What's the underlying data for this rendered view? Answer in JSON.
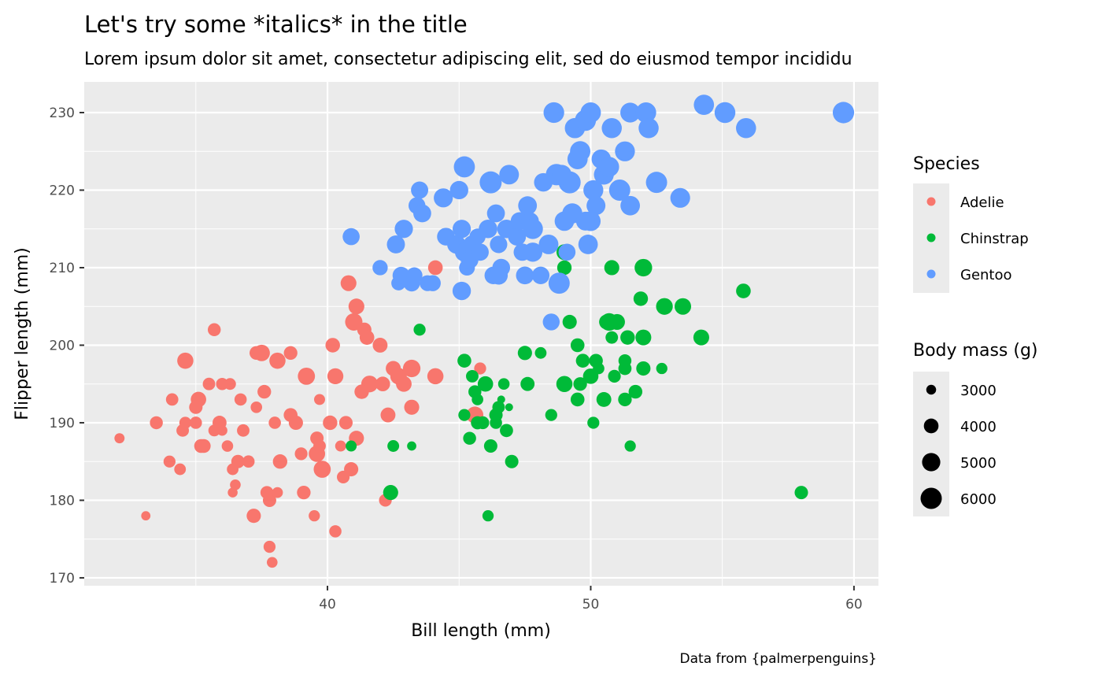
{
  "chart_data": {
    "type": "scatter",
    "title": "Let's try some *italics* in the title",
    "subtitle": "Lorem ipsum dolor sit amet, consectetur adipiscing elit, sed do eiusmod tempor incididu",
    "caption": "Data from {palmerpenguins}",
    "xlabel": "Bill length (mm)",
    "ylabel": "Flipper length (mm)",
    "xlim": [
      30.76,
      60.93
    ],
    "ylim": [
      168.98,
      233.96
    ],
    "xticks": [
      "40",
      "50",
      "60"
    ],
    "yticks": [
      "170",
      "180",
      "190",
      "200",
      "210",
      "220",
      "230"
    ],
    "grid": true,
    "legend_position": "right",
    "color_legend": {
      "title": "Species",
      "entries": [
        "Adelie",
        "Chinstrap",
        "Gentoo"
      ]
    },
    "size_legend": {
      "title": "Body mass (g)",
      "entries": [
        "3000",
        "4000",
        "5000",
        "6000"
      ]
    },
    "colors": {
      "Adelie": "#F8766D",
      "Chinstrap": "#00BA38",
      "Gentoo": "#619CFF",
      "panel": "#EBEBEB"
    },
    "point_fields": [
      "bill_length_mm",
      "flipper_length_mm",
      "body_mass_g"
    ],
    "series": [
      {
        "name": "Adelie",
        "points": [
          [
            32.1,
            188,
            3050
          ],
          [
            33.1,
            178,
            2900
          ],
          [
            33.5,
            190,
            3600
          ],
          [
            34.0,
            185,
            3400
          ],
          [
            34.1,
            193,
            3475
          ],
          [
            34.4,
            184,
            3325
          ],
          [
            34.5,
            189,
            3500
          ],
          [
            34.6,
            198,
            4400
          ],
          [
            34.6,
            190,
            3400
          ],
          [
            35.0,
            190,
            3450
          ],
          [
            35.1,
            193,
            4200
          ],
          [
            35.2,
            187,
            3800
          ],
          [
            35.3,
            187,
            3800
          ],
          [
            35.5,
            195,
            3500
          ],
          [
            35.7,
            202,
            3600
          ],
          [
            35.7,
            189,
            3350
          ],
          [
            35.9,
            190,
            3850
          ],
          [
            36.0,
            195,
            3450
          ],
          [
            36.2,
            187,
            3300
          ],
          [
            36.3,
            195,
            3350
          ],
          [
            36.4,
            184,
            3325
          ],
          [
            36.5,
            182,
            3150
          ],
          [
            36.6,
            185,
            3700
          ],
          [
            36.7,
            193,
            3450
          ],
          [
            36.8,
            189,
            3500
          ],
          [
            37.0,
            185,
            3450
          ],
          [
            37.2,
            178,
            3900
          ],
          [
            37.3,
            192,
            3300
          ],
          [
            37.3,
            199,
            3775
          ],
          [
            37.5,
            199,
            4475
          ],
          [
            37.6,
            194,
            3750
          ],
          [
            37.7,
            181,
            3600
          ],
          [
            37.8,
            174,
            3400
          ],
          [
            37.8,
            180,
            3700
          ],
          [
            37.9,
            172,
            3150
          ],
          [
            38.0,
            190,
            3450
          ],
          [
            38.1,
            181,
            3175
          ],
          [
            38.2,
            185,
            3950
          ],
          [
            38.6,
            199,
            3750
          ],
          [
            38.6,
            191,
            3800
          ],
          [
            38.8,
            190,
            3900
          ],
          [
            39.0,
            186,
            3550
          ],
          [
            39.1,
            181,
            3750
          ],
          [
            39.2,
            196,
            4675
          ],
          [
            39.5,
            178,
            3250
          ],
          [
            39.6,
            186,
            4450
          ],
          [
            39.7,
            193,
            3200
          ],
          [
            39.8,
            184,
            4650
          ],
          [
            40.2,
            200,
            3975
          ],
          [
            40.3,
            196,
            4350
          ],
          [
            40.5,
            187,
            3200
          ],
          [
            40.6,
            183,
            3550
          ],
          [
            40.7,
            190,
            3725
          ],
          [
            40.8,
            208,
            4300
          ],
          [
            40.9,
            184,
            3900
          ],
          [
            41.0,
            203,
            4725
          ],
          [
            41.1,
            205,
            4300
          ],
          [
            41.1,
            188,
            4100
          ],
          [
            41.4,
            202,
            3900
          ],
          [
            41.5,
            201,
            4000
          ],
          [
            41.6,
            195,
            4550
          ],
          [
            42.0,
            200,
            4050
          ],
          [
            42.1,
            195,
            4000
          ],
          [
            42.2,
            180,
            3550
          ],
          [
            42.3,
            191,
            4050
          ],
          [
            42.5,
            197,
            4100
          ],
          [
            42.7,
            196,
            4500
          ],
          [
            42.9,
            195,
            4250
          ],
          [
            43.2,
            197,
            4775
          ],
          [
            43.2,
            192,
            4100
          ],
          [
            44.1,
            196,
            4400
          ],
          [
            44.1,
            210,
            4000
          ],
          [
            45.8,
            197,
            3400
          ],
          [
            45.6,
            191,
            4600
          ],
          [
            40.3,
            176,
            3450
          ],
          [
            36.0,
            189,
            3100
          ],
          [
            36.4,
            181,
            3000
          ],
          [
            38.1,
            198,
            4400
          ],
          [
            39.7,
            187,
            3500
          ],
          [
            35.0,
            192,
            3700
          ],
          [
            40.1,
            190,
            3950
          ],
          [
            41.3,
            194,
            3950
          ],
          [
            39.6,
            188,
            3700
          ]
        ]
      },
      {
        "name": "Chinstrap",
        "points": [
          [
            40.9,
            187,
            3200
          ],
          [
            42.4,
            181,
            4100
          ],
          [
            42.5,
            187,
            3350
          ],
          [
            43.2,
            187,
            2900
          ],
          [
            43.5,
            202,
            3400
          ],
          [
            45.2,
            198,
            3800
          ],
          [
            45.2,
            191,
            3400
          ],
          [
            45.4,
            188,
            3600
          ],
          [
            45.5,
            196,
            3500
          ],
          [
            45.6,
            194,
            3600
          ],
          [
            45.7,
            193,
            3300
          ],
          [
            45.9,
            190,
            3575
          ],
          [
            46.0,
            195,
            4200
          ],
          [
            46.1,
            178,
            3250
          ],
          [
            46.2,
            187,
            3700
          ],
          [
            46.4,
            191,
            3700
          ],
          [
            46.5,
            192,
            3500
          ],
          [
            46.6,
            193,
            2700
          ],
          [
            46.7,
            195,
            3300
          ],
          [
            46.8,
            189,
            3650
          ],
          [
            46.9,
            192,
            2700
          ],
          [
            47.0,
            185,
            3700
          ],
          [
            47.5,
            199,
            3900
          ],
          [
            47.6,
            195,
            3850
          ],
          [
            48.1,
            199,
            3325
          ],
          [
            48.5,
            191,
            3400
          ],
          [
            49.0,
            195,
            4400
          ],
          [
            49.0,
            210,
            3950
          ],
          [
            49.0,
            212,
            4300
          ],
          [
            49.2,
            203,
            3900
          ],
          [
            49.5,
            193,
            3800
          ],
          [
            49.5,
            200,
            3800
          ],
          [
            49.6,
            195,
            3750
          ],
          [
            49.7,
            198,
            3800
          ],
          [
            50.1,
            190,
            3400
          ],
          [
            50.0,
            196,
            4200
          ],
          [
            50.2,
            198,
            3775
          ],
          [
            50.3,
            197,
            3300
          ],
          [
            50.5,
            193,
            4050
          ],
          [
            50.6,
            203,
            4050
          ],
          [
            50.7,
            203,
            4800
          ],
          [
            50.8,
            201,
            3500
          ],
          [
            50.8,
            210,
            4100
          ],
          [
            50.9,
            196,
            3550
          ],
          [
            51.0,
            203,
            4300
          ],
          [
            51.3,
            197,
            3650
          ],
          [
            51.3,
            198,
            3600
          ],
          [
            51.3,
            193,
            3750
          ],
          [
            51.4,
            201,
            3950
          ],
          [
            51.5,
            187,
            3250
          ],
          [
            51.7,
            194,
            3775
          ],
          [
            51.9,
            206,
            3950
          ],
          [
            52.0,
            201,
            4300
          ],
          [
            52.0,
            210,
            4800
          ],
          [
            52.0,
            197,
            3900
          ],
          [
            52.7,
            197,
            3250
          ],
          [
            52.8,
            205,
            4550
          ],
          [
            53.5,
            205,
            4500
          ],
          [
            54.2,
            201,
            4300
          ],
          [
            55.8,
            207,
            4000
          ],
          [
            58.0,
            181,
            3700
          ],
          [
            46.4,
            190,
            3450
          ],
          [
            45.7,
            190,
            3650
          ]
        ]
      },
      {
        "name": "Gentoo",
        "points": [
          [
            40.9,
            214,
            4650
          ],
          [
            42.0,
            210,
            4150
          ],
          [
            42.6,
            213,
            4950
          ],
          [
            42.7,
            208,
            3950
          ],
          [
            42.8,
            209,
            4700
          ],
          [
            42.9,
            215,
            5000
          ],
          [
            43.2,
            208,
            4500
          ],
          [
            43.3,
            209,
            4400
          ],
          [
            43.4,
            218,
            4600
          ],
          [
            43.5,
            220,
            4700
          ],
          [
            43.6,
            217,
            4900
          ],
          [
            43.8,
            208,
            4300
          ],
          [
            44.0,
            208,
            4350
          ],
          [
            44.4,
            219,
            5250
          ],
          [
            44.5,
            214,
            4850
          ],
          [
            44.9,
            213,
            5100
          ],
          [
            45.0,
            220,
            5050
          ],
          [
            45.1,
            215,
            5000
          ],
          [
            45.2,
            223,
            5950
          ],
          [
            45.2,
            212,
            5200
          ],
          [
            45.3,
            210,
            4300
          ],
          [
            45.4,
            211,
            4800
          ],
          [
            45.5,
            213,
            4900
          ],
          [
            45.7,
            214,
            4400
          ],
          [
            45.8,
            212,
            4700
          ],
          [
            46.1,
            215,
            5100
          ],
          [
            46.2,
            221,
            6300
          ],
          [
            46.3,
            209,
            4800
          ],
          [
            46.4,
            217,
            4900
          ],
          [
            46.5,
            213,
            4750
          ],
          [
            46.6,
            210,
            4850
          ],
          [
            46.8,
            215,
            5100
          ],
          [
            46.9,
            222,
            5450
          ],
          [
            47.2,
            214,
            4900
          ],
          [
            47.3,
            216,
            4925
          ],
          [
            47.4,
            212,
            4725
          ],
          [
            47.5,
            209,
            4875
          ],
          [
            47.6,
            218,
            5150
          ],
          [
            47.7,
            216,
            4750
          ],
          [
            47.8,
            215,
            5650
          ],
          [
            48.1,
            209,
            4800
          ],
          [
            48.2,
            221,
            5100
          ],
          [
            48.4,
            213,
            5450
          ],
          [
            48.5,
            203,
            4600
          ],
          [
            48.6,
            230,
            5800
          ],
          [
            48.7,
            222,
            6050
          ],
          [
            48.8,
            208,
            6000
          ],
          [
            49.0,
            216,
            5400
          ],
          [
            49.1,
            212,
            4625
          ],
          [
            49.2,
            221,
            6300
          ],
          [
            49.3,
            217,
            5600
          ],
          [
            49.4,
            228,
            5650
          ],
          [
            49.5,
            224,
            5650
          ],
          [
            49.6,
            225,
            5700
          ],
          [
            49.8,
            229,
            5950
          ],
          [
            49.9,
            213,
            5400
          ],
          [
            50.0,
            230,
            5700
          ],
          [
            50.1,
            220,
            5550
          ],
          [
            50.2,
            218,
            5200
          ],
          [
            50.4,
            224,
            5350
          ],
          [
            50.5,
            222,
            5550
          ],
          [
            50.7,
            223,
            5550
          ],
          [
            50.8,
            228,
            5600
          ],
          [
            51.1,
            220,
            6000
          ],
          [
            51.3,
            225,
            5550
          ],
          [
            51.5,
            218,
            5400
          ],
          [
            51.5,
            230,
            5500
          ],
          [
            52.1,
            230,
            5700
          ],
          [
            52.2,
            228,
            5600
          ],
          [
            52.5,
            221,
            6000
          ],
          [
            53.4,
            219,
            5500
          ],
          [
            54.3,
            231,
            5650
          ],
          [
            55.1,
            230,
            5850
          ],
          [
            55.9,
            228,
            5600
          ],
          [
            59.6,
            230,
            6050
          ],
          [
            45.1,
            207,
            5050
          ],
          [
            46.5,
            209,
            5050
          ],
          [
            47.8,
            212,
            5300
          ],
          [
            50.0,
            216,
            5500
          ],
          [
            48.9,
            222,
            5400
          ],
          [
            49.8,
            216,
            5200
          ]
        ]
      }
    ]
  }
}
